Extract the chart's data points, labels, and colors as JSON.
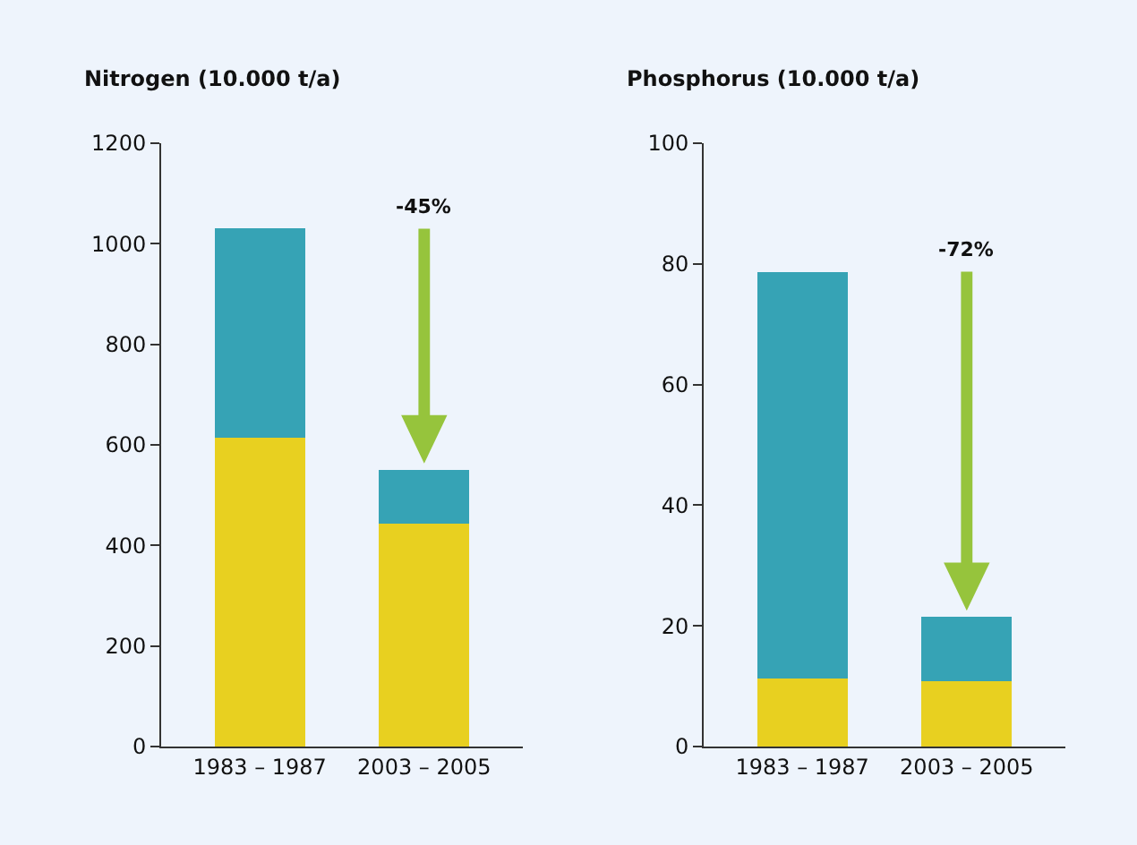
{
  "chart_data": [
    {
      "type": "bar",
      "stacked": true,
      "title": "Nitrogen (10.000 t/a)",
      "categories": [
        "1983 – 1987",
        "2003 – 2005"
      ],
      "series": [
        {
          "color": "#e8d020",
          "values": [
            615,
            443
          ]
        },
        {
          "color": "#36a3b5",
          "values": [
            415,
            108
          ]
        }
      ],
      "ylim": [
        0,
        1200
      ],
      "yticks": [
        0,
        200,
        400,
        600,
        800,
        1000,
        1200
      ],
      "grid": false,
      "annotations": [
        "-45%"
      ]
    },
    {
      "type": "bar",
      "stacked": true,
      "title": "Phosphorus (10.000 t/a)",
      "categories": [
        "1983 – 1987",
        "2003 – 2005"
      ],
      "series": [
        {
          "color": "#e8d020",
          "values": [
            11.3,
            10.8
          ]
        },
        {
          "color": "#36a3b5",
          "values": [
            67.4,
            10.7
          ]
        }
      ],
      "ylim": [
        0,
        100
      ],
      "yticks": [
        0,
        20,
        40,
        60,
        80,
        100
      ],
      "grid": false,
      "annotations": [
        "-72%"
      ]
    }
  ]
}
